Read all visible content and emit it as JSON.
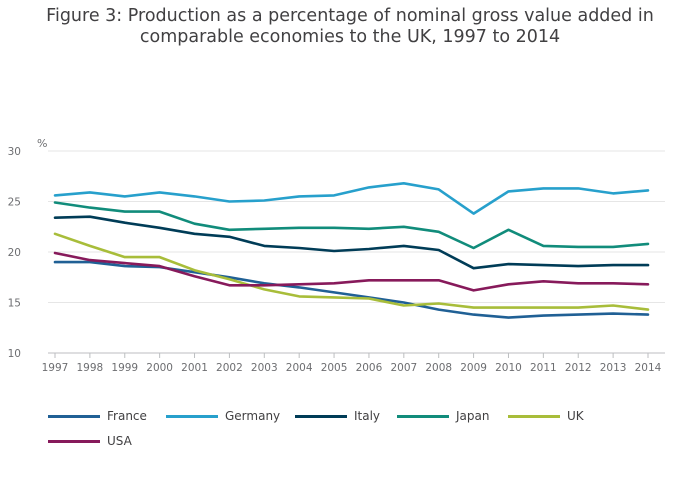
{
  "chart_data": {
    "type": "line",
    "title_lines": [
      "Figure 3: Production as a percentage of nominal gross value added in",
      "comparable economies to the UK, 1997 to 2014"
    ],
    "ylabel": "%",
    "xlabel": "",
    "ylim": [
      10,
      30
    ],
    "yticks": [
      10,
      15,
      20,
      25,
      30
    ],
    "grid": "horizontal",
    "legend_position": "bottom-left",
    "x": [
      1997,
      1998,
      1999,
      2000,
      2001,
      2002,
      2003,
      2004,
      2005,
      2006,
      2007,
      2008,
      2009,
      2010,
      2011,
      2012,
      2013,
      2014
    ],
    "series": [
      {
        "name": "France",
        "color": "#206095",
        "values": [
          19.0,
          19.0,
          18.6,
          18.5,
          18.0,
          17.5,
          16.9,
          16.5,
          16.0,
          15.5,
          15.0,
          14.3,
          13.8,
          13.5,
          13.7,
          13.8,
          13.9,
          13.8
        ]
      },
      {
        "name": "Germany",
        "color": "#27a0cc",
        "values": [
          25.6,
          25.9,
          25.5,
          25.9,
          25.5,
          25.0,
          25.1,
          25.5,
          25.6,
          26.4,
          26.8,
          26.2,
          23.8,
          26.0,
          26.3,
          26.3,
          25.8,
          26.1
        ]
      },
      {
        "name": "Italy",
        "color": "#003c57",
        "values": [
          23.4,
          23.5,
          22.9,
          22.4,
          21.8,
          21.5,
          20.6,
          20.4,
          20.1,
          20.3,
          20.6,
          20.2,
          18.4,
          18.8,
          18.7,
          18.6,
          18.7,
          18.7
        ]
      },
      {
        "name": "Japan",
        "color": "#118c7b",
        "values": [
          24.9,
          24.4,
          24.0,
          24.0,
          22.8,
          22.2,
          22.3,
          22.4,
          22.4,
          22.3,
          22.5,
          22.0,
          20.4,
          22.2,
          20.6,
          20.5,
          20.5,
          20.8
        ]
      },
      {
        "name": "UK",
        "color": "#a8bd3a",
        "values": [
          21.8,
          20.6,
          19.5,
          19.5,
          18.2,
          17.3,
          16.3,
          15.6,
          15.5,
          15.4,
          14.7,
          14.9,
          14.5,
          14.5,
          14.5,
          14.5,
          14.7,
          14.3
        ]
      },
      {
        "name": "USA",
        "color": "#871a5b",
        "values": [
          19.9,
          19.2,
          18.9,
          18.6,
          17.6,
          16.7,
          16.7,
          16.8,
          16.9,
          17.2,
          17.2,
          17.2,
          16.2,
          16.8,
          17.1,
          16.9,
          16.9,
          16.8
        ]
      }
    ]
  },
  "colors": {
    "grid": "#e6e6e6",
    "axis": "#bcbec0",
    "text": "#414042"
  }
}
